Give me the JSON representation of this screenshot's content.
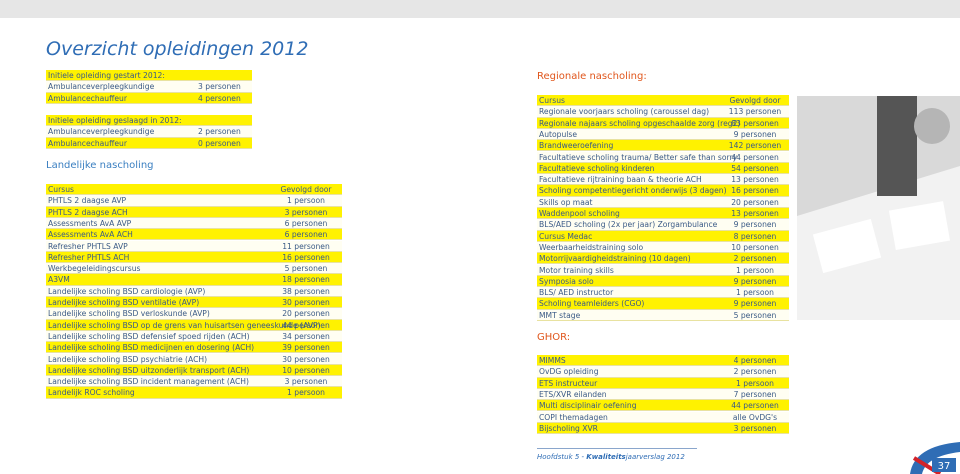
{
  "header": {
    "title": "Overzicht opleidingen 2012"
  },
  "tables": [
    {
      "rows": [
        [
          "Initiele opleiding gestart 2012:"
        ],
        [
          "Ambulanceverpleegkundige",
          "3 personen"
        ],
        [
          "Ambulancechauffeur",
          "4 personen"
        ]
      ]
    },
    {
      "rows": [
        [
          "Initiele opleiding geslaagd in 2012:"
        ],
        [
          "Ambulanceverpleegkundige",
          "2 personen"
        ],
        [
          "Ambulancechauffeur",
          "0 personen"
        ]
      ]
    },
    {
      "heading": "Landelijke nascholing",
      "rows": [
        [
          "Cursus",
          "Gevolgd door"
        ],
        [
          "PHTLS 2 daagse AVP",
          "1 persoon"
        ],
        [
          "PHTLS  2 daagse ACH",
          "3 personen"
        ],
        [
          "Assessments AvA AVP",
          "6 personen"
        ],
        [
          "Assessments AvA ACH",
          "6 personen"
        ],
        [
          "Refresher PHTLS AVP",
          "11 personen"
        ],
        [
          "Refresher PHTLS ACH",
          "16 personen"
        ],
        [
          "Werkbegeleidingscursus",
          "5 personen"
        ],
        [
          "A3VM",
          "18 personen"
        ],
        [
          "Landelijke scholing BSD cardiologie (AVP)",
          "38 personen"
        ],
        [
          "Landelijke scholing BSD ventilatie (AVP)",
          "30 personen"
        ],
        [
          "Landelijke scholing BSD verloskunde (AVP)",
          "20 personen"
        ],
        [
          "Landelijke scholing BSD op de grens van huisartsen geneeskunde (AVP)",
          "44  personen"
        ],
        [
          "Landelijke scholing BSD defensief spoed rijden (ACH)",
          "34 personen"
        ],
        [
          "Landelijke scholing BSD medicijnen en dosering (ACH)",
          "39 personen"
        ],
        [
          "Landelijke scholing BSD psychiatrie (ACH)",
          "30 personen"
        ],
        [
          "Landelijke scholing BSD uitzonderlijk transport (ACH)",
          "10 personen"
        ],
        [
          "Landelijke scholing BSD incident management (ACH)",
          "3 personen"
        ],
        [
          "Landelijk ROC scholing",
          "1 persoon"
        ]
      ]
    },
    {
      "heading": "Regionale nascholing:",
      "rows": [
        [
          "Cursus",
          "Gevolgd door"
        ],
        [
          "Regionale voorjaars scholing (caroussel dag)",
          "113 personen"
        ],
        [
          "Regionale najaars scholing  opgeschaalde zorg (reg2)",
          "83 personen"
        ],
        [
          "Autopulse",
          "9 personen"
        ],
        [
          "Brandweeroefening",
          "142 personen"
        ],
        [
          "Facultatieve scholing trauma/ Better safe than sorry",
          "44 personen"
        ],
        [
          "Facultatieve scholing kinderen",
          "54 personen"
        ],
        [
          "Facultatieve rijtraining baan & theorie ACH",
          "13 personen"
        ],
        [
          "Scholing competentiegericht onderwijs (3 dagen)",
          "16 personen"
        ],
        [
          "Skills op maat",
          "20 personen"
        ],
        [
          "Waddenpool scholing",
          "13 personen"
        ],
        [
          "BLS/AED scholing (2x per jaar) Zorgambulance",
          "9 personen"
        ],
        [
          "Cursus Medac",
          "8 personen"
        ],
        [
          "Weerbaarheidstraining solo",
          "10 personen"
        ],
        [
          "Motorrijvaardigheidstraining (10 dagen)",
          "2 personen"
        ],
        [
          "Motor training skills",
          "1 persoon"
        ],
        [
          "Symposia solo",
          "9 personen"
        ],
        [
          "BLS/ AED instructor",
          "1 persoon"
        ],
        [
          "Scholing teamleiders (CGO)",
          "9 personen"
        ],
        [
          "MMT stage",
          "5 personen"
        ]
      ]
    },
    {
      "heading": "GHOR:",
      "rows": [
        [
          "MIMMS",
          "4 personen"
        ],
        [
          "OvDG opleiding",
          "2 personen"
        ],
        [
          "ETS instructeur",
          "1 persoon"
        ],
        [
          "ETS/XVR eilanden",
          "7 personen"
        ],
        [
          "Multi disciplinair oefening",
          "44 personen"
        ],
        [
          "COPI themadagen",
          "alle OvDG's"
        ],
        [
          "Bijscholing XVR",
          "3 personen"
        ]
      ]
    }
  ],
  "footer": {
    "chapter": "Hoofdstuk 5 - ",
    "report_bold": "Kwaliteits",
    "report": "jaarverslag 2012",
    "page": "37"
  }
}
